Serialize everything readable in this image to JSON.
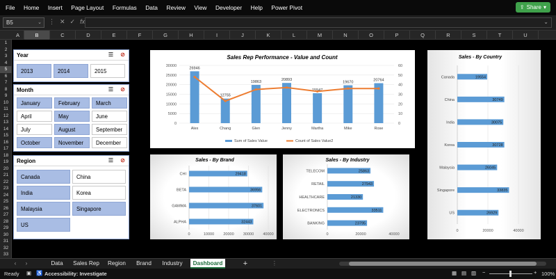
{
  "menu": [
    "File",
    "Home",
    "Insert",
    "Page Layout",
    "Formulas",
    "Data",
    "Review",
    "View",
    "Developer",
    "Help",
    "Power Pivot"
  ],
  "share_label": "Share",
  "namebox": "B5",
  "fx_label": "fx",
  "columns": [
    "A",
    "B",
    "C",
    "D",
    "E",
    "F",
    "G",
    "H",
    "I",
    "J",
    "K",
    "L",
    "M",
    "N",
    "O",
    "P",
    "Q",
    "R",
    "S",
    "T",
    "U"
  ],
  "selected_column": "B",
  "rows": [
    "1",
    "2",
    "3",
    "4",
    "5",
    "6",
    "7",
    "8",
    "9",
    "10",
    "11",
    "12",
    "13",
    "14",
    "15",
    "16",
    "17",
    "18",
    "19",
    "20",
    "21",
    "22",
    "23",
    "24",
    "25",
    "26",
    "27",
    "28",
    "29",
    "30",
    "31",
    "32",
    "33"
  ],
  "selected_row": "5",
  "slicers": {
    "year": {
      "title": "Year",
      "items": [
        {
          "label": "2013",
          "on": true
        },
        {
          "label": "2014",
          "on": true
        },
        {
          "label": "2015",
          "on": false
        }
      ]
    },
    "month": {
      "title": "Month",
      "items": [
        {
          "label": "January",
          "on": true
        },
        {
          "label": "February",
          "on": true
        },
        {
          "label": "March",
          "on": true
        },
        {
          "label": "April",
          "on": false
        },
        {
          "label": "May",
          "on": true
        },
        {
          "label": "June",
          "on": false
        },
        {
          "label": "July",
          "on": false
        },
        {
          "label": "August",
          "on": true
        },
        {
          "label": "September",
          "on": false
        },
        {
          "label": "October",
          "on": true
        },
        {
          "label": "November",
          "on": true
        },
        {
          "label": "December",
          "on": false
        }
      ]
    },
    "region": {
      "title": "Region",
      "items": [
        {
          "label": "Canada",
          "on": true
        },
        {
          "label": "China",
          "on": false
        },
        {
          "label": "India",
          "on": true
        },
        {
          "label": "Korea",
          "on": false
        },
        {
          "label": "Malaysia",
          "on": true
        },
        {
          "label": "Singapore",
          "on": true
        },
        {
          "label": "US",
          "on": true
        }
      ]
    }
  },
  "chart_data": [
    {
      "id": "sales-rep",
      "type": "bar+line",
      "title": "Sales Rep Performance  - Value and Count",
      "categories": [
        "Alex",
        "Chang",
        "Glen",
        "Jenny",
        "Martha",
        "Mike",
        "Rose"
      ],
      "series": [
        {
          "name": "Sum of Sales Value",
          "type": "bar",
          "values": [
            26946,
            12755,
            19863,
            20893,
            15547,
            19670,
            20764
          ]
        },
        {
          "name": "Count of Sales Value2",
          "type": "line",
          "axis": "right",
          "values": [
            48,
            23,
            35,
            37,
            33,
            36,
            36
          ]
        }
      ],
      "ylim": [
        0,
        30000
      ],
      "yticks": [
        0,
        5000,
        10000,
        15000,
        20000,
        25000,
        30000
      ],
      "y2lim": [
        0,
        60
      ],
      "y2ticks": [
        0,
        10,
        20,
        30,
        40,
        50,
        60
      ],
      "colors": {
        "bar": "#5b9bd5",
        "line": "#ed7d31"
      }
    },
    {
      "id": "by-brand",
      "type": "bar",
      "orientation": "horizontal",
      "title": "Sales  - By Brand",
      "categories": [
        "CHI",
        "BETA",
        "GAMMA",
        "ALPHA"
      ],
      "values": [
        29418,
        36956,
        37601,
        32443
      ],
      "xlim": [
        0,
        40000
      ],
      "xticks": [
        0,
        10000,
        20000,
        30000,
        40000
      ]
    },
    {
      "id": "by-industry",
      "type": "bar",
      "orientation": "horizontal",
      "title": "Sales  - By Industry",
      "categories": [
        "TELECOM",
        "RETAIL",
        "HEALTHCARE",
        "ELECTRONICS",
        "BANKING"
      ],
      "values": [
        25863,
        27943,
        21330,
        33511,
        23795
      ],
      "xlim": [
        0,
        40000
      ],
      "xticks": [
        0,
        20000,
        40000
      ]
    },
    {
      "id": "by-country",
      "type": "bar",
      "orientation": "horizontal",
      "title": "Sales  - By Country",
      "categories": [
        "Canada",
        "China",
        "India",
        "Korea",
        "Malaysia",
        "Singapore",
        "US"
      ],
      "values": [
        19554,
        30749,
        30075,
        30728,
        26045,
        33835,
        26929
      ],
      "xlim": [
        0,
        40000
      ],
      "xticks": [
        0,
        20000,
        40000
      ]
    }
  ],
  "sheet_tabs": [
    {
      "label": "Data",
      "active": false
    },
    {
      "label": "Sales Rep",
      "active": false
    },
    {
      "label": "Region",
      "active": false
    },
    {
      "label": "Brand",
      "active": false
    },
    {
      "label": "Industry",
      "active": false
    },
    {
      "label": "Dashboard",
      "active": true
    }
  ],
  "add_sheet": "+",
  "status": {
    "ready": "Ready",
    "accessibility": "Accessibility: Investigate",
    "zoom": "100%"
  }
}
